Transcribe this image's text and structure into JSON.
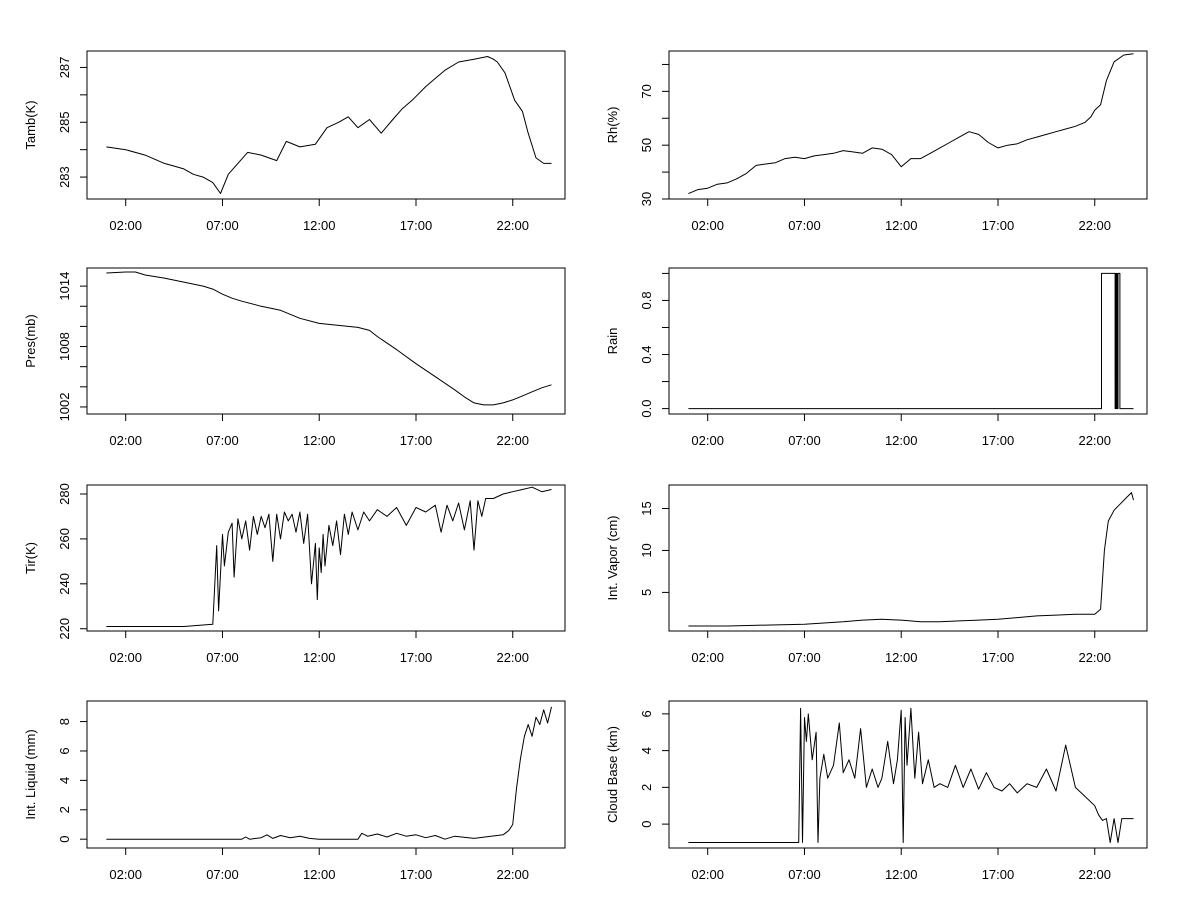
{
  "chart_data": [
    {
      "type": "line",
      "ylabel": "Tamb(K)",
      "xticks": [
        "02:00",
        "07:00",
        "12:00",
        "17:00",
        "22:00"
      ],
      "xlim": [
        0.0,
        24.7
      ],
      "ylim": [
        282.2,
        287.6
      ],
      "yticks": [
        283,
        284,
        285,
        286,
        287
      ],
      "ytick_labels": [
        "283",
        "",
        "285",
        "",
        "287"
      ],
      "series": [
        {
          "x": [
            1.0,
            2.0,
            3.0,
            4.0,
            5.0,
            5.5,
            6.0,
            6.5,
            6.9,
            7.3,
            7.8,
            8.3,
            9.0,
            9.8,
            10.3,
            11.0,
            11.8,
            12.4,
            13.0,
            13.5,
            14.0,
            14.6,
            15.2,
            15.8,
            16.3,
            16.8,
            17.5,
            18.0,
            18.5,
            19.2,
            20.0,
            20.7,
            21.0,
            21.2,
            21.6,
            22.1,
            22.5,
            22.8,
            23.2,
            23.6,
            24.0
          ],
          "y": [
            284.1,
            284.0,
            283.8,
            283.5,
            283.3,
            283.1,
            283.0,
            282.8,
            282.4,
            283.1,
            283.5,
            283.9,
            283.8,
            283.6,
            284.3,
            284.1,
            284.2,
            284.8,
            285.0,
            285.2,
            284.8,
            285.1,
            284.6,
            285.1,
            285.5,
            285.8,
            286.3,
            286.6,
            286.9,
            287.2,
            287.3,
            287.4,
            287.3,
            287.2,
            286.8,
            285.8,
            285.4,
            284.6,
            283.7,
            283.5,
            283.5
          ]
        }
      ]
    },
    {
      "type": "line",
      "ylabel": "Rh(%)",
      "xticks": [
        "02:00",
        "07:00",
        "12:00",
        "17:00",
        "22:00"
      ],
      "xlim": [
        0.0,
        24.7
      ],
      "ylim": [
        30,
        85
      ],
      "yticks": [
        30,
        40,
        50,
        60,
        70,
        80
      ],
      "ytick_labels": [
        "30",
        "",
        "50",
        "",
        "70",
        ""
      ],
      "series": [
        {
          "x": [
            1.0,
            1.5,
            2.0,
            2.5,
            3.0,
            3.5,
            4.0,
            4.5,
            5.0,
            5.5,
            6.0,
            6.5,
            7.0,
            7.5,
            8.0,
            8.5,
            9.0,
            9.5,
            10.0,
            10.5,
            11.0,
            11.5,
            12.0,
            12.5,
            13.0,
            13.5,
            14.0,
            14.5,
            15.0,
            15.5,
            16.0,
            16.5,
            17.0,
            17.5,
            18.0,
            18.5,
            19.0,
            19.5,
            20.0,
            20.5,
            21.0,
            21.5,
            21.8,
            22.0,
            22.3,
            22.6,
            23.0,
            23.5,
            24.0
          ],
          "y": [
            32.0,
            33.5,
            34.0,
            35.5,
            36.0,
            37.5,
            39.5,
            42.5,
            43.0,
            43.5,
            45.0,
            45.5,
            45.0,
            46.0,
            46.5,
            47.0,
            48.0,
            47.5,
            47.0,
            49.0,
            48.5,
            46.5,
            42.0,
            45.0,
            45.0,
            47.0,
            49.0,
            51.0,
            53.0,
            55.0,
            54.0,
            51.0,
            49.0,
            50.0,
            50.5,
            52.0,
            53.0,
            54.0,
            55.0,
            56.0,
            57.0,
            58.5,
            60.5,
            63.0,
            65.0,
            74.0,
            81.0,
            83.5,
            84.0
          ]
        }
      ]
    },
    {
      "type": "line",
      "ylabel": "Pres(mb)",
      "xticks": [
        "02:00",
        "07:00",
        "12:00",
        "17:00",
        "22:00"
      ],
      "xlim": [
        0.0,
        24.7
      ],
      "ylim": [
        1001.3,
        1015.8
      ],
      "yticks": [
        1002,
        1004,
        1006,
        1008,
        1010,
        1012,
        1014
      ],
      "ytick_labels": [
        "1002",
        "",
        "",
        "1008",
        "",
        "",
        "1014"
      ],
      "series": [
        {
          "x": [
            1.0,
            2.0,
            2.5,
            3.0,
            4.0,
            5.0,
            6.0,
            6.5,
            7.0,
            7.5,
            8.0,
            9.0,
            10.0,
            11.0,
            12.0,
            13.0,
            14.0,
            14.6,
            15.0,
            16.0,
            17.0,
            18.0,
            19.0,
            19.5,
            20.0,
            20.5,
            21.0,
            21.5,
            22.0,
            22.5,
            23.0,
            23.5,
            24.0
          ],
          "y": [
            1015.3,
            1015.4,
            1015.4,
            1015.1,
            1014.8,
            1014.4,
            1014.0,
            1013.7,
            1013.2,
            1012.8,
            1012.5,
            1012.0,
            1011.6,
            1010.8,
            1010.3,
            1010.1,
            1009.9,
            1009.6,
            1009.0,
            1007.7,
            1006.3,
            1005.0,
            1003.7,
            1003.0,
            1002.4,
            1002.2,
            1002.2,
            1002.4,
            1002.7,
            1003.1,
            1003.5,
            1003.9,
            1004.2
          ]
        }
      ]
    },
    {
      "type": "line",
      "ylabel": "Rain",
      "xticks": [
        "02:00",
        "07:00",
        "12:00",
        "17:00",
        "22:00"
      ],
      "xlim": [
        0.0,
        24.7
      ],
      "ylim": [
        -0.04,
        1.04
      ],
      "yticks": [
        0.0,
        0.2,
        0.4,
        0.6,
        0.8,
        1.0
      ],
      "ytick_labels": [
        "0.0",
        "",
        "0.4",
        "",
        "0.8",
        ""
      ],
      "series": [
        {
          "x": [
            1.0,
            22.35,
            22.35,
            23.05,
            23.05,
            23.1,
            23.1,
            23.15,
            23.15,
            23.2,
            23.2,
            23.3,
            23.3,
            24.0
          ],
          "y": [
            0,
            0,
            1,
            1,
            0,
            0,
            1,
            1,
            0,
            0,
            1,
            1,
            0,
            0
          ]
        }
      ]
    },
    {
      "type": "line",
      "ylabel": "Tir(K)",
      "xticks": [
        "02:00",
        "07:00",
        "12:00",
        "17:00",
        "22:00"
      ],
      "xlim": [
        0.0,
        24.7
      ],
      "ylim": [
        219,
        284
      ],
      "yticks": [
        220,
        240,
        260,
        280
      ],
      "ytick_labels": [
        "220",
        "240",
        "260",
        "280"
      ],
      "series": [
        {
          "x": [
            1.0,
            3.0,
            5.0,
            6.5,
            6.7,
            6.8,
            7.0,
            7.1,
            7.3,
            7.5,
            7.6,
            7.8,
            8.0,
            8.2,
            8.4,
            8.6,
            8.8,
            9.0,
            9.2,
            9.4,
            9.6,
            9.8,
            10.0,
            10.2,
            10.4,
            10.6,
            10.8,
            11.0,
            11.2,
            11.4,
            11.6,
            11.8,
            11.9,
            12.0,
            12.1,
            12.2,
            12.3,
            12.5,
            12.7,
            12.9,
            13.1,
            13.3,
            13.5,
            13.7,
            14.0,
            14.3,
            14.6,
            15.0,
            15.5,
            16.0,
            16.5,
            17.0,
            17.5,
            18.0,
            18.3,
            18.6,
            18.9,
            19.2,
            19.5,
            19.8,
            20.0,
            20.2,
            20.4,
            20.6,
            21.0,
            21.5,
            22.0,
            22.5,
            23.0,
            23.5,
            24.0
          ],
          "y": [
            221,
            221,
            221,
            222,
            257,
            228,
            262,
            248,
            263,
            267,
            243,
            269,
            260,
            268,
            255,
            270,
            262,
            270,
            265,
            271,
            250,
            271,
            260,
            272,
            268,
            271,
            263,
            272,
            258,
            271,
            240,
            258,
            233,
            256,
            245,
            262,
            248,
            266,
            257,
            268,
            253,
            271,
            262,
            272,
            264,
            272,
            268,
            273,
            270,
            274,
            266,
            274,
            272,
            275,
            263,
            275,
            268,
            276,
            264,
            277,
            255,
            277,
            270,
            278,
            278,
            280,
            281,
            282,
            283,
            281,
            282
          ]
        }
      ]
    },
    {
      "type": "line",
      "ylabel": "Int. Vapor (cm)",
      "xticks": [
        "02:00",
        "07:00",
        "12:00",
        "17:00",
        "22:00"
      ],
      "xlim": [
        0.0,
        24.7
      ],
      "ylim": [
        0.4,
        17.8
      ],
      "yticks": [
        5,
        10,
        15
      ],
      "ytick_labels": [
        "5",
        "10",
        "15"
      ],
      "series": [
        {
          "x": [
            1.0,
            3.0,
            5.0,
            7.0,
            9.0,
            10.0,
            11.0,
            12.0,
            13.0,
            14.0,
            15.0,
            16.0,
            17.0,
            18.0,
            19.0,
            20.0,
            21.0,
            22.0,
            22.3,
            22.5,
            22.7,
            23.0,
            23.3,
            23.6,
            23.9,
            24.0
          ],
          "y": [
            1.0,
            1.0,
            1.1,
            1.2,
            1.5,
            1.7,
            1.8,
            1.7,
            1.5,
            1.5,
            1.6,
            1.7,
            1.8,
            2.0,
            2.2,
            2.3,
            2.4,
            2.4,
            3.0,
            10.0,
            13.5,
            14.8,
            15.5,
            16.2,
            16.9,
            16.0
          ]
        }
      ]
    },
    {
      "type": "line",
      "ylabel": "Int. Liquid (mm)",
      "xticks": [
        "02:00",
        "07:00",
        "12:00",
        "17:00",
        "22:00"
      ],
      "xlim": [
        0.0,
        24.7
      ],
      "ylim": [
        -0.6,
        9.4
      ],
      "yticks": [
        0,
        2,
        4,
        6,
        8
      ],
      "ytick_labels": [
        "0",
        "2",
        "4",
        "6",
        "8"
      ],
      "series": [
        {
          "x": [
            1.0,
            4.0,
            8.0,
            8.2,
            8.4,
            9.0,
            9.3,
            9.6,
            10.0,
            10.5,
            11.0,
            11.5,
            12.0,
            13.0,
            14.0,
            14.2,
            14.5,
            15.0,
            15.5,
            16.0,
            16.5,
            17.0,
            17.5,
            18.0,
            18.5,
            19.0,
            20.0,
            21.5,
            21.8,
            22.0,
            22.2,
            22.4,
            22.6,
            22.8,
            23.0,
            23.2,
            23.4,
            23.6,
            23.8,
            24.0
          ],
          "y": [
            0,
            0,
            0,
            0.15,
            0,
            0.1,
            0.3,
            0.05,
            0.25,
            0.1,
            0.2,
            0.05,
            0,
            0,
            0,
            0.4,
            0.2,
            0.35,
            0.15,
            0.4,
            0.2,
            0.3,
            0.1,
            0.25,
            0,
            0.2,
            0.05,
            0.3,
            0.6,
            1.0,
            3.5,
            5.5,
            7.0,
            7.8,
            7.0,
            8.3,
            7.8,
            8.8,
            7.9,
            9.0
          ]
        }
      ]
    },
    {
      "type": "line",
      "ylabel": "Cloud Base (km)",
      "xticks": [
        "02:00",
        "07:00",
        "12:00",
        "17:00",
        "22:00"
      ],
      "xlim": [
        0.0,
        24.7
      ],
      "ylim": [
        -1.3,
        6.7
      ],
      "yticks": [
        0,
        2,
        4,
        6
      ],
      "ytick_labels": [
        "0",
        "2",
        "4",
        "6"
      ],
      "series": [
        {
          "x": [
            1.0,
            4.0,
            6.7,
            6.8,
            6.9,
            7.0,
            7.1,
            7.2,
            7.4,
            7.6,
            7.7,
            7.8,
            8.0,
            8.2,
            8.5,
            8.8,
            9.0,
            9.3,
            9.6,
            9.9,
            10.2,
            10.5,
            10.8,
            11.0,
            11.3,
            11.6,
            11.8,
            12.0,
            12.1,
            12.2,
            12.3,
            12.5,
            12.7,
            12.9,
            13.1,
            13.4,
            13.7,
            14.0,
            14.4,
            14.8,
            15.2,
            15.6,
            16.0,
            16.4,
            16.8,
            17.2,
            17.6,
            18.0,
            18.5,
            19.0,
            19.5,
            20.0,
            20.5,
            21.0,
            21.5,
            22.0,
            22.2,
            22.4,
            22.6,
            22.8,
            23.0,
            23.2,
            23.4,
            23.6,
            24.0
          ],
          "y": [
            -1,
            -1,
            -1,
            6.3,
            -1,
            5.8,
            4.5,
            6.0,
            3.5,
            5.0,
            -1,
            2.5,
            3.8,
            2.5,
            3.2,
            5.5,
            2.8,
            3.5,
            2.5,
            5.2,
            2.0,
            3.0,
            2.0,
            2.5,
            4.5,
            2.2,
            3.5,
            6.2,
            -1,
            5.8,
            3.2,
            6.3,
            2.5,
            5.0,
            2.2,
            3.5,
            2.0,
            2.2,
            2.0,
            3.2,
            2.0,
            3.0,
            1.9,
            2.8,
            2.0,
            1.8,
            2.2,
            1.7,
            2.2,
            2.0,
            3.0,
            1.8,
            4.3,
            2.0,
            1.5,
            1.0,
            0.5,
            0.2,
            0.3,
            -1,
            0.3,
            -1,
            0.3,
            0.3,
            0.3
          ]
        }
      ]
    }
  ]
}
